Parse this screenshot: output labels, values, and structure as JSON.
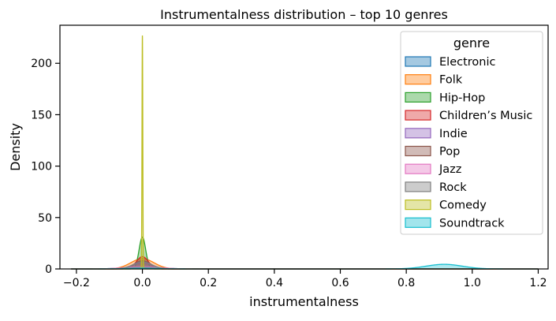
{
  "chart_data": {
    "type": "area",
    "title": "Instrumentalness distribution – top 10 genres",
    "xlabel": "instrumentalness",
    "ylabel": "Density",
    "xlim": [
      -0.25,
      1.23
    ],
    "ylim": [
      0,
      237
    ],
    "xticks": [
      -0.2,
      0.0,
      0.2,
      0.4,
      0.6,
      0.8,
      1.0,
      1.2
    ],
    "xtick_labels": [
      "−0.2",
      "0.0",
      "0.2",
      "0.4",
      "0.6",
      "0.8",
      "1.0",
      "1.2"
    ],
    "yticks": [
      0,
      50,
      100,
      150,
      200
    ],
    "yticks_labels": [
      "0",
      "50",
      "100",
      "150",
      "200"
    ],
    "grid": false,
    "legend": {
      "title": "genre",
      "placement": "top-right"
    },
    "series": [
      {
        "name": "Electronic",
        "color": "#1f77b4",
        "peaks": [
          {
            "x": 0.0,
            "height": 1.5,
            "width": 0.06
          }
        ]
      },
      {
        "name": "Folk",
        "color": "#ff7f0e",
        "peaks": [
          {
            "x": 0.0,
            "height": 10,
            "width": 0.035
          }
        ]
      },
      {
        "name": "Hip-Hop",
        "color": "#2ca02c",
        "peaks": [
          {
            "x": 0.0,
            "height": 31,
            "width": 0.01
          }
        ]
      },
      {
        "name": "Children’s Music",
        "color": "#d62728",
        "peaks": [
          {
            "x": 0.0,
            "height": 12,
            "width": 0.018
          }
        ]
      },
      {
        "name": "Indie",
        "color": "#9467bd",
        "peaks": [
          {
            "x": 0.0,
            "height": 6,
            "width": 0.03
          }
        ]
      },
      {
        "name": "Pop",
        "color": "#8c564b",
        "peaks": [
          {
            "x": 0.0,
            "height": 8,
            "width": 0.025
          }
        ]
      },
      {
        "name": "Jazz",
        "color": "#e377c2",
        "peaks": [
          {
            "x": 0.0,
            "height": 2.5,
            "width": 0.05
          }
        ]
      },
      {
        "name": "Rock",
        "color": "#7f7f7f",
        "peaks": [
          {
            "x": 0.0,
            "height": 7,
            "width": 0.028
          }
        ]
      },
      {
        "name": "Comedy",
        "color": "#bcbd22",
        "peaks": [
          {
            "x": 0.0,
            "height": 227,
            "width": 0.0012
          }
        ]
      },
      {
        "name": "Soundtrack",
        "color": "#17becf",
        "peaks": [
          {
            "x": 0.0,
            "height": 0.8,
            "width": 0.05
          },
          {
            "x": 0.915,
            "height": 4.5,
            "width": 0.055
          }
        ]
      }
    ]
  }
}
